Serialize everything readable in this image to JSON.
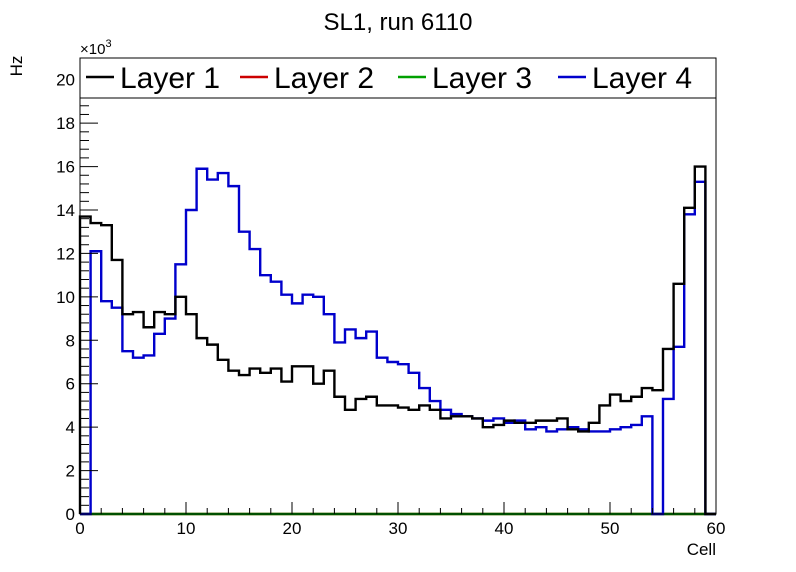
{
  "chart_data": {
    "type": "line",
    "title": "SL1, run 6110",
    "xlabel": "Cell",
    "ylabel": "Hz",
    "y_multiplier_label": "×10",
    "y_multiplier_exponent": "3",
    "xlim": [
      0,
      60
    ],
    "ylim": [
      0,
      21
    ],
    "x_ticks": [
      0,
      10,
      20,
      30,
      40,
      50,
      60
    ],
    "y_ticks": [
      0,
      2,
      4,
      6,
      8,
      10,
      12,
      14,
      16,
      18,
      20
    ],
    "grid": false,
    "legend_position": "top",
    "bin_edges_start": 0,
    "bin_width": 1,
    "series": [
      {
        "name": "Layer 1",
        "color": "#000000",
        "values": [
          13.7,
          13.4,
          13.3,
          11.7,
          9.2,
          9.3,
          8.6,
          9.3,
          9.2,
          10.0,
          9.2,
          8.1,
          7.8,
          7.1,
          6.6,
          6.4,
          6.7,
          6.5,
          6.7,
          6.1,
          6.8,
          6.8,
          6.0,
          6.6,
          5.4,
          4.8,
          5.3,
          5.4,
          5.0,
          5.0,
          4.9,
          4.8,
          5.0,
          4.8,
          4.4,
          4.5,
          4.5,
          4.4,
          4.0,
          4.1,
          4.3,
          4.2,
          4.2,
          4.3,
          4.3,
          4.4,
          3.9,
          3.8,
          4.2,
          5.0,
          5.5,
          5.2,
          5.4,
          5.8,
          5.7,
          7.6,
          10.6,
          14.1,
          16.0,
          0
        ]
      },
      {
        "name": "Layer 2",
        "color": "#cc0000",
        "values": [
          0,
          0,
          0,
          0,
          0,
          0,
          0,
          0,
          0,
          0,
          0,
          0,
          0,
          0,
          0,
          0,
          0,
          0,
          0,
          0,
          0,
          0,
          0,
          0,
          0,
          0,
          0,
          0,
          0,
          0,
          0,
          0,
          0,
          0,
          0,
          0,
          0,
          0,
          0,
          0,
          0,
          0,
          0,
          0,
          0,
          0,
          0,
          0,
          0,
          0,
          0,
          0,
          0,
          0,
          0,
          0,
          0,
          0,
          0,
          0
        ]
      },
      {
        "name": "Layer 3",
        "color": "#00a000",
        "values": [
          0,
          0,
          0,
          0,
          0,
          0,
          0,
          0,
          0,
          0,
          0,
          0,
          0,
          0,
          0,
          0,
          0,
          0,
          0,
          0,
          0,
          0,
          0,
          0,
          0,
          0,
          0,
          0,
          0,
          0,
          0,
          0,
          0,
          0,
          0,
          0,
          0,
          0,
          0,
          0,
          0,
          0,
          0,
          0,
          0,
          0,
          0,
          0,
          0,
          0,
          0,
          0,
          0,
          0,
          0,
          0,
          0,
          0,
          0,
          0
        ]
      },
      {
        "name": "Layer 4",
        "color": "#0000cc",
        "values": [
          0,
          12.1,
          9.8,
          9.5,
          7.5,
          7.2,
          7.3,
          8.3,
          9.0,
          11.5,
          14.0,
          15.9,
          15.4,
          15.7,
          15.1,
          13.0,
          12.2,
          11.0,
          10.7,
          10.1,
          9.7,
          10.1,
          10.0,
          9.2,
          7.9,
          8.5,
          8.1,
          8.4,
          7.2,
          7.0,
          6.9,
          6.5,
          5.8,
          5.2,
          4.8,
          4.6,
          4.5,
          4.4,
          4.3,
          4.4,
          4.2,
          4.3,
          3.9,
          4.0,
          3.8,
          3.9,
          4.0,
          3.9,
          3.8,
          3.8,
          3.9,
          4.0,
          4.1,
          4.5,
          0,
          5.3,
          7.7,
          13.8,
          15.3,
          0
        ]
      }
    ]
  }
}
